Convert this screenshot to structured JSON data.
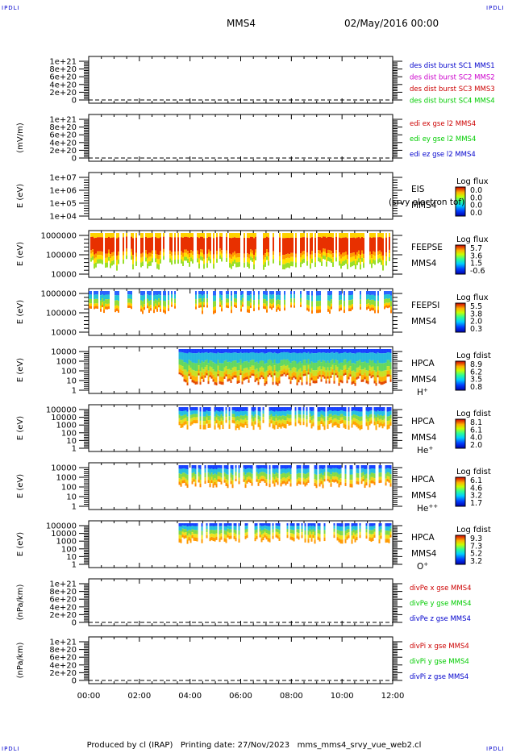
{
  "corner_label": "IPDLI",
  "header": {
    "spacecraft": "MMS4",
    "date": "02/May/2016 00:00"
  },
  "footer": {
    "produced_by": "Produced by cl (IRAP)",
    "printing_date": "Printing date: 27/Nov/2023",
    "script_name": "mms_mms4_srvy_vue_web2.cl"
  },
  "colors": {
    "dashed": "#000000",
    "red": "#cc0000",
    "magenta": "#cc00cc",
    "green": "#00cc00",
    "blue": "#0000cc"
  },
  "chart_data": {
    "type": "heatmap",
    "x_tick_labels": [
      "00:00",
      "02:00",
      "04:00",
      "06:00",
      "08:00",
      "10:00",
      "12:00"
    ],
    "x_range_hours": [
      0,
      12
    ],
    "panels": [
      {
        "id": "des-dist",
        "kind": "line",
        "ylabel": "",
        "tick_labels": [
          "0",
          "2e+20",
          "4e+20",
          "6e+20",
          "8e+20",
          "1e+21"
        ],
        "dashed_zero": true,
        "legend": [
          {
            "text": "des dist burst SC1 MMS1",
            "color": "#0000cc"
          },
          {
            "text": "des dist burst SC2 MMS2",
            "color": "#cc00cc"
          },
          {
            "text": "des dist burst SC3 MMS3",
            "color": "#cc0000"
          },
          {
            "text": "des dist burst SC4 MMS4",
            "color": "#00cc00"
          }
        ]
      },
      {
        "id": "edi",
        "kind": "line",
        "ylabel": "(mV/m)",
        "tick_labels": [
          "0",
          "2e+20",
          "4e+20",
          "6e+20",
          "8e+20",
          "1e+21"
        ],
        "dashed_zero": true,
        "legend": [
          {
            "text": "edi ex gse l2 MMS4",
            "color": "#cc0000"
          },
          {
            "text": "edi ey gse l2 MMS4",
            "color": "#00cc00"
          },
          {
            "text": "edi ez gse l2 MMS4",
            "color": "#0000cc"
          }
        ]
      },
      {
        "id": "eis",
        "kind": "spectrogram",
        "ylabel": "E (eV)",
        "tick_labels": [
          "1e+04",
          "1e+05",
          "1e+06",
          "1e+07"
        ],
        "instrument": "EIS",
        "spacecraft": "MMS4",
        "extra_label": "(srvy electron tof)",
        "species": "",
        "cbar_title": "Log flux",
        "cbar_values": [
          "0.0",
          "0.0",
          "0.0",
          "0.0"
        ],
        "data_start_hour": null,
        "coverage": 0,
        "bands": []
      },
      {
        "id": "feepse",
        "kind": "spectrogram",
        "ylabel": "E (eV)",
        "tick_labels": [
          "10000",
          "100000",
          "1000000"
        ],
        "instrument": "FEEPSE",
        "spacecraft": "MMS4",
        "species": "",
        "cbar_title": "Log flux",
        "cbar_values": [
          "5.7",
          "3.6",
          "1.5",
          "-0.6"
        ],
        "data_start_hour": 0,
        "coverage": 0.82,
        "bands": [
          {
            "from": 0.0,
            "to": 0.14,
            "color": "#ffd200"
          },
          {
            "from": 0.14,
            "to": 0.6,
            "color": "#e83000"
          },
          {
            "from": 0.6,
            "to": 0.72,
            "color": "#ff9a00"
          },
          {
            "from": 0.72,
            "to": 0.86,
            "color": "#ffe000"
          },
          {
            "from": 0.86,
            "to": 1.0,
            "color": "#9adf2a"
          }
        ]
      },
      {
        "id": "feepsi",
        "kind": "spectrogram",
        "ylabel": "E (eV)",
        "tick_labels": [
          "10000",
          "100000",
          "1000000"
        ],
        "instrument": "FEEPSI",
        "spacecraft": "MMS4",
        "species": "",
        "cbar_title": "Log flux",
        "cbar_values": [
          "5.5",
          "3.8",
          "2.0",
          "0.3"
        ],
        "data_start_hour": 0,
        "coverage": 0.5,
        "bands": [
          {
            "from": 0.0,
            "to": 0.2,
            "color": "#2b63ff"
          },
          {
            "from": 0.2,
            "to": 0.45,
            "color": "#26c4d6"
          },
          {
            "from": 0.45,
            "to": 0.7,
            "color": "#8fdc3a"
          },
          {
            "from": 0.7,
            "to": 0.85,
            "color": "#ffd000"
          },
          {
            "from": 0.85,
            "to": 1.0,
            "color": "#ff7d00"
          }
        ]
      },
      {
        "id": "hpca-h",
        "kind": "spectrogram",
        "ylabel": "E (eV)",
        "tick_labels": [
          "1",
          "10",
          "100",
          "1000",
          "10000"
        ],
        "instrument": "HPCA",
        "spacecraft": "MMS4",
        "species": "H",
        "species_sup": "+",
        "cbar_title": "Log fdist",
        "cbar_values": [
          "8.9",
          "6.2",
          "3.5",
          "0.8"
        ],
        "data_start_hour": 3.55,
        "coverage": 0.8,
        "bands": [
          {
            "from": 0.0,
            "to": 0.12,
            "color": "#1740ff"
          },
          {
            "from": 0.12,
            "to": 0.4,
            "color": "#24b8e0"
          },
          {
            "from": 0.4,
            "to": 0.62,
            "color": "#62d760"
          },
          {
            "from": 0.62,
            "to": 0.78,
            "color": "#c8e024"
          },
          {
            "from": 0.78,
            "to": 0.92,
            "color": "#ffb000"
          },
          {
            "from": 0.92,
            "to": 1.0,
            "color": "#e34a00"
          }
        ]
      },
      {
        "id": "hpca-he",
        "kind": "spectrogram",
        "ylabel": "E (eV)",
        "tick_labels": [
          "1",
          "10",
          "100",
          "1000",
          "10000",
          "100000"
        ],
        "instrument": "HPCA",
        "spacecraft": "MMS4",
        "species": "He",
        "species_sup": "+",
        "cbar_title": "Log fdist",
        "cbar_values": [
          "8.1",
          "6.1",
          "4.0",
          "2.0"
        ],
        "data_start_hour": 3.55,
        "coverage": 0.5,
        "bands": [
          {
            "from": 0.0,
            "to": 0.2,
            "color": "#1740ff"
          },
          {
            "from": 0.2,
            "to": 0.42,
            "color": "#22c0e4"
          },
          {
            "from": 0.42,
            "to": 0.62,
            "color": "#7fd94a"
          },
          {
            "from": 0.62,
            "to": 0.8,
            "color": "#e6dd1c"
          },
          {
            "from": 0.8,
            "to": 1.0,
            "color": "#ffa300"
          }
        ]
      },
      {
        "id": "hpca-he2",
        "kind": "spectrogram",
        "ylabel": "E (eV)",
        "tick_labels": [
          "1",
          "10",
          "100",
          "1000",
          "10000"
        ],
        "instrument": "HPCA",
        "spacecraft": "MMS4",
        "species": "He",
        "species_sup": "++",
        "cbar_title": "Log fdist",
        "cbar_values": [
          "6.1",
          "4.6",
          "3.2",
          "1.7"
        ],
        "data_start_hour": 3.55,
        "coverage": 0.5,
        "bands": [
          {
            "from": 0.0,
            "to": 0.18,
            "color": "#1740ff"
          },
          {
            "from": 0.18,
            "to": 0.42,
            "color": "#24bde0"
          },
          {
            "from": 0.42,
            "to": 0.66,
            "color": "#83db45"
          },
          {
            "from": 0.66,
            "to": 0.84,
            "color": "#f0d618"
          },
          {
            "from": 0.84,
            "to": 1.0,
            "color": "#ff8c00"
          }
        ]
      },
      {
        "id": "hpca-o",
        "kind": "spectrogram",
        "ylabel": "E (eV)",
        "tick_labels": [
          "1",
          "10",
          "100",
          "1000",
          "10000",
          "100000"
        ],
        "instrument": "HPCA",
        "spacecraft": "MMS4",
        "species": "O",
        "species_sup": "+",
        "cbar_title": "Log fdist",
        "cbar_values": [
          "9.3",
          "7.3",
          "5.2",
          "3.2"
        ],
        "data_start_hour": 3.55,
        "coverage": 0.45,
        "bands": [
          {
            "from": 0.0,
            "to": 0.16,
            "color": "#1740ff"
          },
          {
            "from": 0.16,
            "to": 0.38,
            "color": "#24c2dc"
          },
          {
            "from": 0.38,
            "to": 0.6,
            "color": "#7ed947"
          },
          {
            "from": 0.6,
            "to": 0.8,
            "color": "#f2e21b"
          },
          {
            "from": 0.8,
            "to": 1.0,
            "color": "#ff9a00"
          }
        ]
      },
      {
        "id": "divpe",
        "kind": "line",
        "ylabel": "(nPa/km)",
        "tick_labels": [
          "0",
          "2e+20",
          "4e+20",
          "6e+20",
          "8e+20",
          "1e+21"
        ],
        "dashed_zero": true,
        "legend": [
          {
            "text": "divPe x gse MMS4",
            "color": "#cc0000"
          },
          {
            "text": "divPe y gse MMS4",
            "color": "#00cc00"
          },
          {
            "text": "divPe z gse MMS4",
            "color": "#0000cc"
          }
        ]
      },
      {
        "id": "divpi",
        "kind": "line",
        "ylabel": "(nPa/km)",
        "tick_labels": [
          "0",
          "2e+20",
          "4e+20",
          "6e+20",
          "8e+20",
          "1e+21"
        ],
        "dashed_zero": true,
        "legend": [
          {
            "text": "divPi x gse MMS4",
            "color": "#cc0000"
          },
          {
            "text": "divPi y gse MMS4",
            "color": "#00cc00"
          },
          {
            "text": "divPi z gse MMS4",
            "color": "#0000cc"
          }
        ]
      }
    ]
  }
}
